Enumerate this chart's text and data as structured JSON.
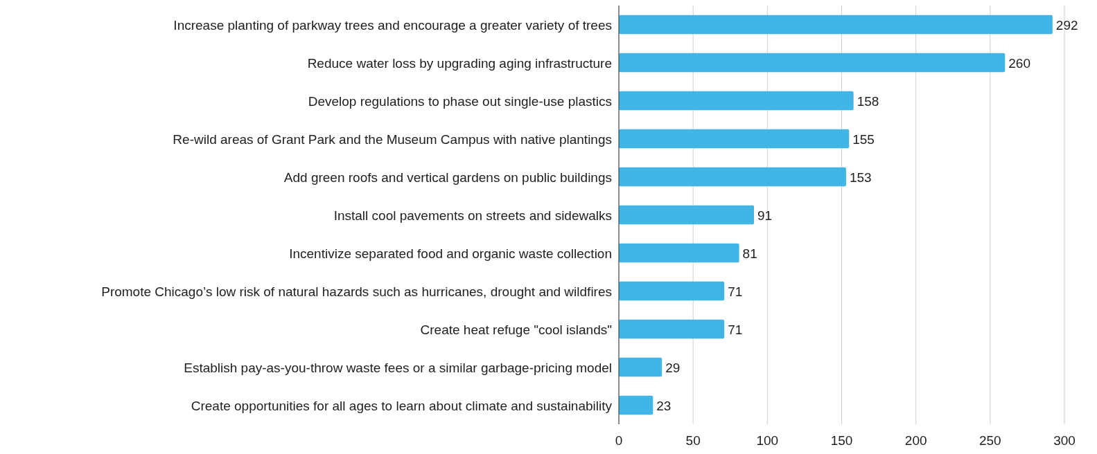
{
  "chart_data": {
    "type": "bar",
    "orientation": "horizontal",
    "categories": [
      "Increase planting of parkway trees and encourage a greater variety of trees",
      "Reduce water loss by upgrading aging infrastructure",
      "Develop regulations to phase out single-use plastics",
      "Re-wild areas of Grant Park and the Museum Campus with native plantings",
      "Add green roofs and vertical gardens on public buildings",
      "Install cool pavements on streets and sidewalks",
      "Incentivize separated food and organic waste collection",
      "Promote Chicago’s low risk of natural hazards such as hurricanes, drought and wildfires",
      "Create heat refuge \"cool islands\"",
      "Establish pay-as-you-throw waste fees or a similar garbage-pricing model",
      "Create opportunities for all ages to learn about climate and sustainability"
    ],
    "values": [
      292,
      260,
      158,
      155,
      153,
      91,
      81,
      71,
      71,
      29,
      23
    ],
    "color": "#41b6e6",
    "xlim": [
      0,
      300
    ],
    "xticks": [
      0,
      50,
      100,
      150,
      200,
      250,
      300
    ],
    "grid": "x",
    "data_labels": true
  }
}
